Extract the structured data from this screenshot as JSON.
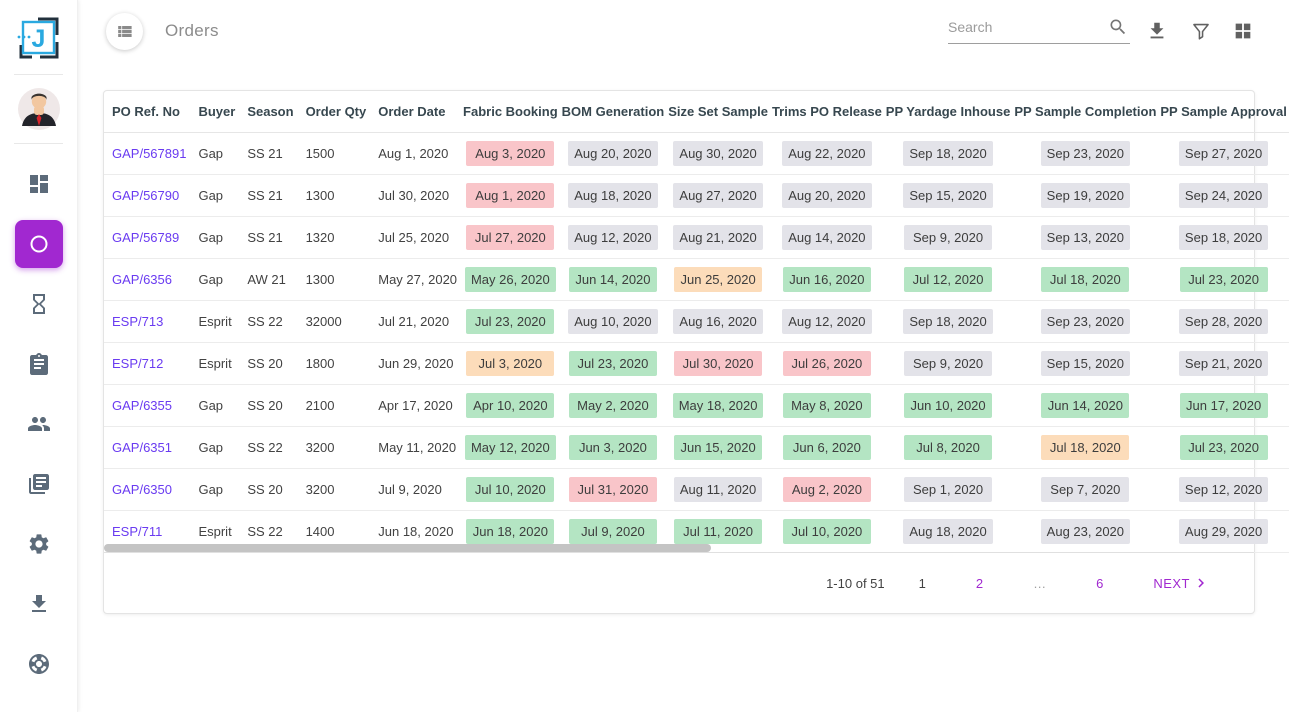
{
  "colors": {
    "accent": "#a128d0",
    "po_link": "#6a3bf1",
    "chip_late": "#f9c5c9",
    "chip_ok": "#b4e5c3",
    "chip_warn": "#fcdcba",
    "chip_pending": "#e3e3e9"
  },
  "sidebar": {
    "items": [
      {
        "name": "dashboard",
        "icon": "dashboard-icon",
        "active": false
      },
      {
        "name": "orders",
        "icon": "circle-icon",
        "active": true
      },
      {
        "name": "history",
        "icon": "hourglass-icon",
        "active": false
      },
      {
        "name": "tasks",
        "icon": "clipboard-icon",
        "active": false
      },
      {
        "name": "users",
        "icon": "people-icon",
        "active": false
      },
      {
        "name": "reports",
        "icon": "library-icon",
        "active": false
      },
      {
        "name": "settings",
        "icon": "gear-icon",
        "active": false
      },
      {
        "name": "downloads",
        "icon": "download-icon",
        "active": false
      },
      {
        "name": "support",
        "icon": "lifebuoy-icon",
        "active": false
      }
    ]
  },
  "toolbar": {
    "title": "Orders",
    "search_placeholder": "Search"
  },
  "table": {
    "columns": [
      "PO Ref. No",
      "Buyer",
      "Season",
      "Order Qty",
      "Order Date",
      "Fabric Booking",
      "BOM Generation",
      "Size Set Sample",
      "Trims PO Release",
      "PP Yardage Inhouse",
      "PP Sample Completion",
      "PP Sample Approval"
    ],
    "rows": [
      {
        "po": "GAP/567891",
        "buyer": "Gap",
        "season": "SS 21",
        "qty": "1500",
        "order_date": "Aug 1, 2020",
        "milestones": [
          {
            "d": "Aug 3, 2020",
            "s": "late"
          },
          {
            "d": "Aug 20, 2020",
            "s": "pending"
          },
          {
            "d": "Aug 30, 2020",
            "s": "pending"
          },
          {
            "d": "Aug 22, 2020",
            "s": "pending"
          },
          {
            "d": "Sep 18, 2020",
            "s": "pending"
          },
          {
            "d": "Sep 23, 2020",
            "s": "pending"
          },
          {
            "d": "Sep 27, 2020",
            "s": "pending"
          }
        ]
      },
      {
        "po": "GAP/56790",
        "buyer": "Gap",
        "season": "SS 21",
        "qty": "1300",
        "order_date": "Jul 30, 2020",
        "milestones": [
          {
            "d": "Aug 1, 2020",
            "s": "late"
          },
          {
            "d": "Aug 18, 2020",
            "s": "pending"
          },
          {
            "d": "Aug 27, 2020",
            "s": "pending"
          },
          {
            "d": "Aug 20, 2020",
            "s": "pending"
          },
          {
            "d": "Sep 15, 2020",
            "s": "pending"
          },
          {
            "d": "Sep 19, 2020",
            "s": "pending"
          },
          {
            "d": "Sep 24, 2020",
            "s": "pending"
          }
        ]
      },
      {
        "po": "GAP/56789",
        "buyer": "Gap",
        "season": "SS 21",
        "qty": "1320",
        "order_date": "Jul 25, 2020",
        "milestones": [
          {
            "d": "Jul 27, 2020",
            "s": "late"
          },
          {
            "d": "Aug 12, 2020",
            "s": "pending"
          },
          {
            "d": "Aug 21, 2020",
            "s": "pending"
          },
          {
            "d": "Aug 14, 2020",
            "s": "pending"
          },
          {
            "d": "Sep 9, 2020",
            "s": "pending"
          },
          {
            "d": "Sep 13, 2020",
            "s": "pending"
          },
          {
            "d": "Sep 18, 2020",
            "s": "pending"
          }
        ]
      },
      {
        "po": "GAP/6356",
        "buyer": "Gap",
        "season": "AW 21",
        "qty": "1300",
        "order_date": "May 27, 2020",
        "milestones": [
          {
            "d": "May 26, 2020",
            "s": "ok"
          },
          {
            "d": "Jun 14, 2020",
            "s": "ok"
          },
          {
            "d": "Jun 25, 2020",
            "s": "warn"
          },
          {
            "d": "Jun 16, 2020",
            "s": "ok"
          },
          {
            "d": "Jul 12, 2020",
            "s": "ok"
          },
          {
            "d": "Jul 18, 2020",
            "s": "ok"
          },
          {
            "d": "Jul 23, 2020",
            "s": "ok"
          }
        ]
      },
      {
        "po": "ESP/713",
        "buyer": "Esprit",
        "season": "SS 22",
        "qty": "32000",
        "order_date": "Jul 21, 2020",
        "milestones": [
          {
            "d": "Jul 23, 2020",
            "s": "ok"
          },
          {
            "d": "Aug 10, 2020",
            "s": "pending"
          },
          {
            "d": "Aug 16, 2020",
            "s": "pending"
          },
          {
            "d": "Aug 12, 2020",
            "s": "pending"
          },
          {
            "d": "Sep 18, 2020",
            "s": "pending"
          },
          {
            "d": "Sep 23, 2020",
            "s": "pending"
          },
          {
            "d": "Sep 28, 2020",
            "s": "pending"
          }
        ]
      },
      {
        "po": "ESP/712",
        "buyer": "Esprit",
        "season": "SS 20",
        "qty": "1800",
        "order_date": "Jun 29, 2020",
        "milestones": [
          {
            "d": "Jul 3, 2020",
            "s": "warn"
          },
          {
            "d": "Jul 23, 2020",
            "s": "ok"
          },
          {
            "d": "Jul 30, 2020",
            "s": "late"
          },
          {
            "d": "Jul 26, 2020",
            "s": "late"
          },
          {
            "d": "Sep 9, 2020",
            "s": "pending"
          },
          {
            "d": "Sep 15, 2020",
            "s": "pending"
          },
          {
            "d": "Sep 21, 2020",
            "s": "pending"
          }
        ]
      },
      {
        "po": "GAP/6355",
        "buyer": "Gap",
        "season": "SS 20",
        "qty": "2100",
        "order_date": "Apr 17, 2020",
        "milestones": [
          {
            "d": "Apr 10, 2020",
            "s": "ok"
          },
          {
            "d": "May 2, 2020",
            "s": "ok"
          },
          {
            "d": "May 18, 2020",
            "s": "ok"
          },
          {
            "d": "May 8, 2020",
            "s": "ok"
          },
          {
            "d": "Jun 10, 2020",
            "s": "ok"
          },
          {
            "d": "Jun 14, 2020",
            "s": "ok"
          },
          {
            "d": "Jun 17, 2020",
            "s": "ok"
          }
        ]
      },
      {
        "po": "GAP/6351",
        "buyer": "Gap",
        "season": "SS 22",
        "qty": "3200",
        "order_date": "May 11, 2020",
        "milestones": [
          {
            "d": "May 12, 2020",
            "s": "ok"
          },
          {
            "d": "Jun 3, 2020",
            "s": "ok"
          },
          {
            "d": "Jun 15, 2020",
            "s": "ok"
          },
          {
            "d": "Jun 6, 2020",
            "s": "ok"
          },
          {
            "d": "Jul 8, 2020",
            "s": "ok"
          },
          {
            "d": "Jul 18, 2020",
            "s": "warn"
          },
          {
            "d": "Jul 23, 2020",
            "s": "ok"
          }
        ]
      },
      {
        "po": "GAP/6350",
        "buyer": "Gap",
        "season": "SS 20",
        "qty": "3200",
        "order_date": "Jul 9, 2020",
        "milestones": [
          {
            "d": "Jul 10, 2020",
            "s": "ok"
          },
          {
            "d": "Jul 31, 2020",
            "s": "late"
          },
          {
            "d": "Aug 11, 2020",
            "s": "pending"
          },
          {
            "d": "Aug 2, 2020",
            "s": "late"
          },
          {
            "d": "Sep 1, 2020",
            "s": "pending"
          },
          {
            "d": "Sep 7, 2020",
            "s": "pending"
          },
          {
            "d": "Sep 12, 2020",
            "s": "pending"
          }
        ]
      },
      {
        "po": "ESP/711",
        "buyer": "Esprit",
        "season": "SS 22",
        "qty": "1400",
        "order_date": "Jun 18, 2020",
        "milestones": [
          {
            "d": "Jun 18, 2020",
            "s": "ok"
          },
          {
            "d": "Jul 9, 2020",
            "s": "ok"
          },
          {
            "d": "Jul 11, 2020",
            "s": "ok"
          },
          {
            "d": "Jul 10, 2020",
            "s": "ok"
          },
          {
            "d": "Aug 18, 2020",
            "s": "pending"
          },
          {
            "d": "Aug 23, 2020",
            "s": "pending"
          },
          {
            "d": "Aug 29, 2020",
            "s": "pending"
          }
        ]
      }
    ]
  },
  "pagination": {
    "range": "1-10 of 51",
    "pages": [
      {
        "label": "1",
        "type": "current"
      },
      {
        "label": "2",
        "type": "link"
      },
      {
        "label": "…",
        "type": "ellipsis"
      },
      {
        "label": "6",
        "type": "link"
      }
    ],
    "next_label": "NEXT"
  }
}
